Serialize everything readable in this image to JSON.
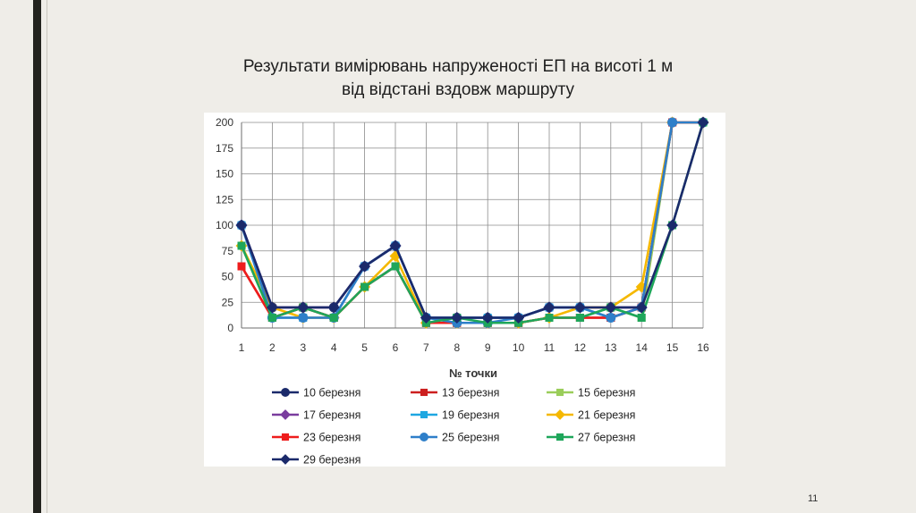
{
  "slide": {
    "title_line1": "Результати вимірювань напруженості ЕП на висоті 1 м",
    "title_line2": "від відстані вздовж маршруту",
    "page_number": "11"
  },
  "chart_data": {
    "type": "line",
    "title": "",
    "xlabel": "№ точки",
    "ylabel": "",
    "x": [
      1,
      2,
      3,
      4,
      5,
      6,
      7,
      8,
      9,
      10,
      11,
      12,
      13,
      14,
      15,
      16
    ],
    "ylim": [
      0,
      200
    ],
    "yticks": [
      0,
      25,
      50,
      75,
      100,
      125,
      150,
      175,
      200
    ],
    "grid": true,
    "legend_position": "bottom",
    "series": [
      {
        "name": "10 березня",
        "color": "#1b2a6b",
        "marker": "circle",
        "values": [
          100,
          20,
          20,
          20,
          60,
          80,
          10,
          10,
          10,
          10,
          20,
          20,
          20,
          20,
          200,
          200
        ]
      },
      {
        "name": "13 березня",
        "color": "#cc1f1f",
        "marker": "square",
        "values": [
          60,
          10,
          20,
          10,
          40,
          60,
          5,
          5,
          5,
          5,
          10,
          10,
          10,
          20,
          200,
          200
        ]
      },
      {
        "name": "15 березня",
        "color": "#9acd5a",
        "marker": "square",
        "values": [
          80,
          10,
          20,
          10,
          40,
          60,
          5,
          5,
          5,
          5,
          10,
          10,
          20,
          10,
          200,
          200
        ]
      },
      {
        "name": "17 березня",
        "color": "#7a3d9e",
        "marker": "diamond",
        "values": [
          100,
          20,
          20,
          20,
          60,
          80,
          10,
          10,
          10,
          10,
          20,
          20,
          20,
          20,
          200,
          200
        ]
      },
      {
        "name": "19 березня",
        "color": "#1ea7e1",
        "marker": "square",
        "values": [
          100,
          10,
          10,
          10,
          60,
          80,
          10,
          10,
          10,
          10,
          20,
          20,
          10,
          20,
          200,
          200
        ]
      },
      {
        "name": "21 березня",
        "color": "#f5b800",
        "marker": "diamond",
        "values": [
          80,
          20,
          10,
          10,
          40,
          70,
          5,
          5,
          5,
          5,
          10,
          20,
          20,
          40,
          200,
          200
        ]
      },
      {
        "name": "23 березня",
        "color": "#ee1c1c",
        "marker": "square",
        "values": [
          60,
          10,
          20,
          10,
          40,
          60,
          5,
          5,
          5,
          5,
          10,
          10,
          10,
          20,
          200,
          200
        ]
      },
      {
        "name": "25 березня",
        "color": "#2e7fc9",
        "marker": "circle",
        "values": [
          100,
          10,
          10,
          10,
          60,
          80,
          10,
          5,
          5,
          10,
          20,
          20,
          10,
          20,
          200,
          200
        ]
      },
      {
        "name": "27 березня",
        "color": "#1ea65a",
        "marker": "square",
        "values": [
          80,
          10,
          20,
          10,
          40,
          60,
          5,
          10,
          5,
          5,
          10,
          10,
          20,
          10,
          100,
          200
        ]
      },
      {
        "name": "29 березня",
        "color": "#1b2a6b",
        "marker": "diamond",
        "values": [
          100,
          20,
          20,
          20,
          60,
          80,
          10,
          10,
          10,
          10,
          20,
          20,
          20,
          20,
          100,
          200
        ]
      }
    ]
  }
}
